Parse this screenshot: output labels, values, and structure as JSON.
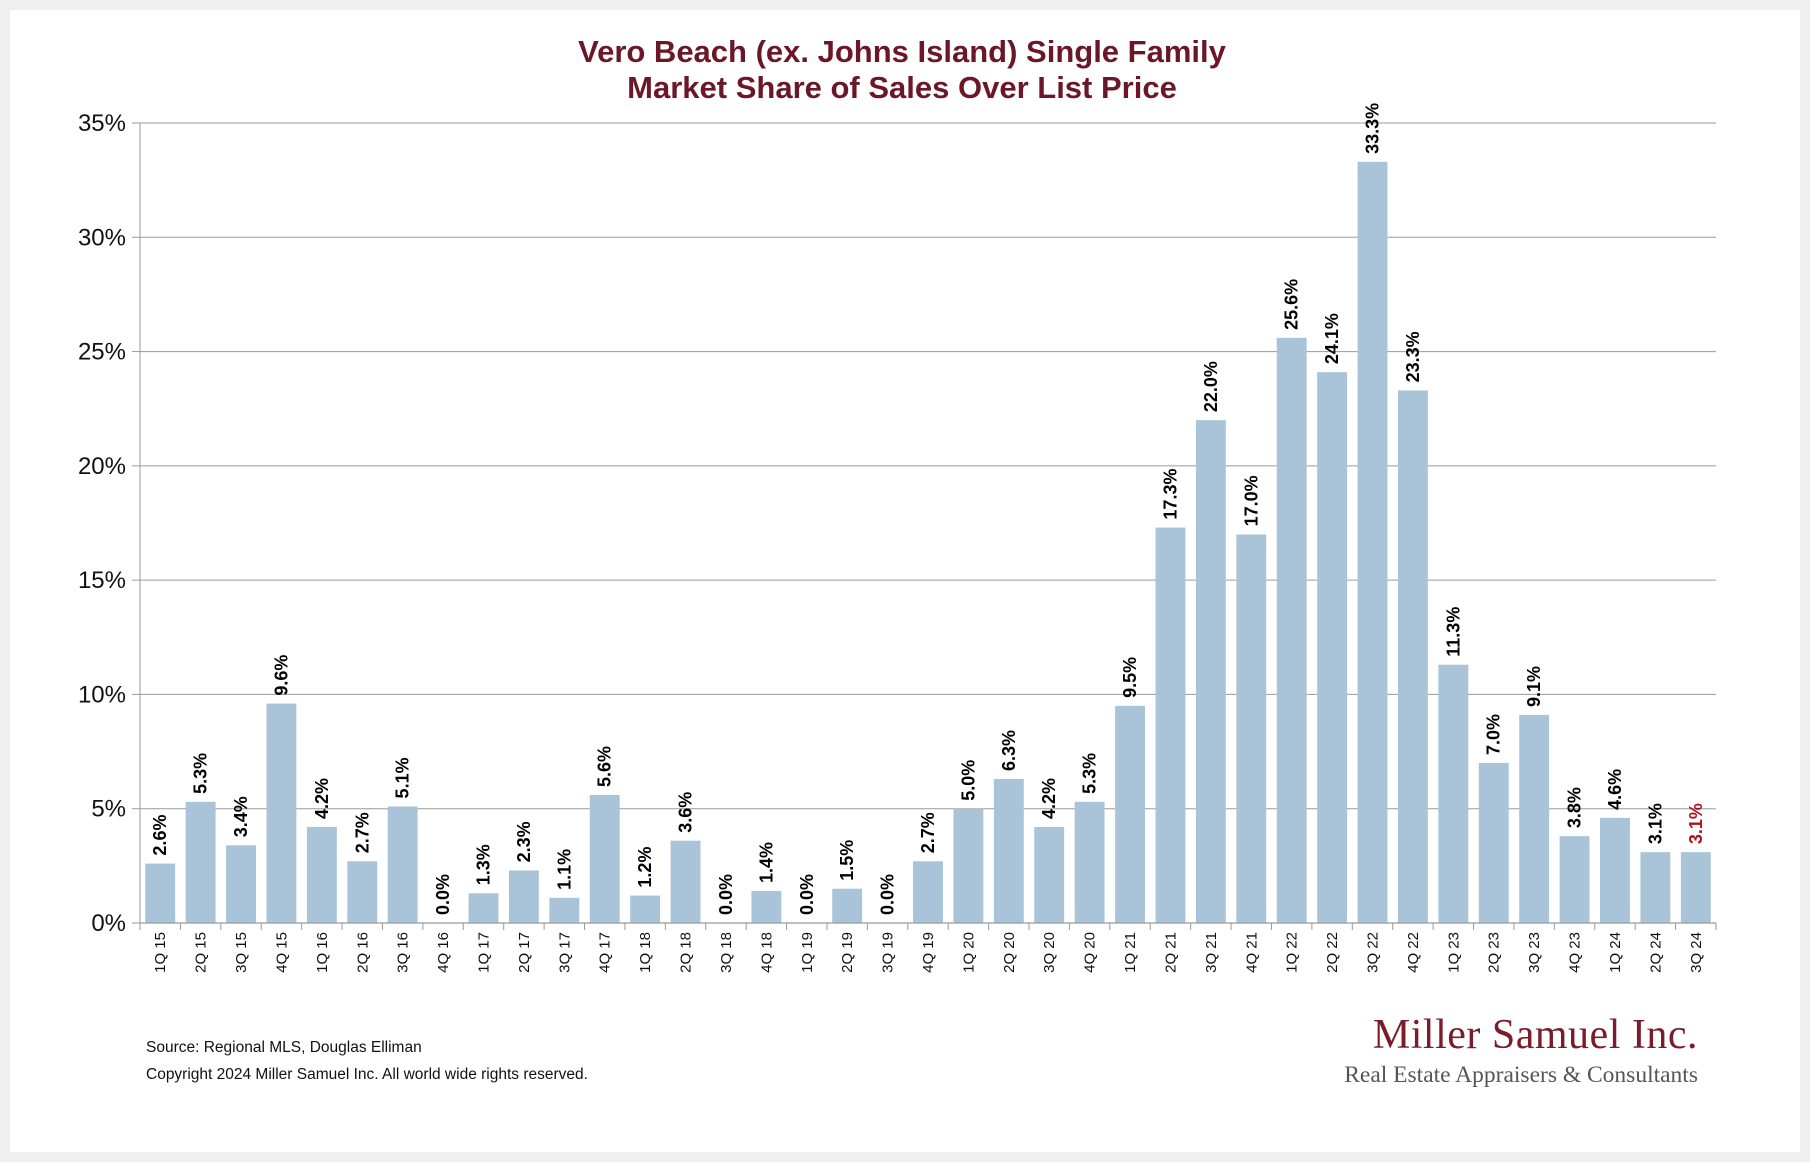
{
  "chart_data": {
    "type": "bar",
    "title": [
      "Vero Beach (ex. Johns Island) Single Family",
      "Market Share of Sales Over List Price"
    ],
    "xlabel": "",
    "ylabel": "",
    "ylim": [
      0,
      35
    ],
    "yticks": [
      0,
      5,
      10,
      15,
      20,
      25,
      30,
      35
    ],
    "ytick_labels": [
      "0%",
      "5%",
      "10%",
      "15%",
      "20%",
      "25%",
      "30%",
      "35%"
    ],
    "grid": true,
    "legend": "none",
    "categories": [
      "1Q 15",
      "2Q 15",
      "3Q 15",
      "4Q 15",
      "1Q 16",
      "2Q 16",
      "3Q 16",
      "4Q 16",
      "1Q 17",
      "2Q 17",
      "3Q 17",
      "4Q 17",
      "1Q 18",
      "2Q 18",
      "3Q 18",
      "4Q 18",
      "1Q 19",
      "2Q 19",
      "3Q 19",
      "4Q 19",
      "1Q 20",
      "2Q 20",
      "3Q 20",
      "4Q 20",
      "1Q 21",
      "2Q 21",
      "3Q 21",
      "4Q 21",
      "1Q 22",
      "2Q 22",
      "3Q 22",
      "4Q 22",
      "1Q 23",
      "2Q 23",
      "3Q 23",
      "4Q 23",
      "1Q 24",
      "2Q 24",
      "3Q 24"
    ],
    "values": [
      2.6,
      5.3,
      3.4,
      9.6,
      4.2,
      2.7,
      5.1,
      0.0,
      1.3,
      2.3,
      1.1,
      5.6,
      1.2,
      3.6,
      0.0,
      1.4,
      0.0,
      1.5,
      0.0,
      2.7,
      5.0,
      6.3,
      4.2,
      5.3,
      9.5,
      17.3,
      22.0,
      17.0,
      25.6,
      24.1,
      33.3,
      23.3,
      11.3,
      7.0,
      9.1,
      3.8,
      4.6,
      3.1,
      3.1
    ],
    "data_labels": [
      "2.6%",
      "5.3%",
      "3.4%",
      "9.6%",
      "4.2%",
      "2.7%",
      "5.1%",
      "0.0%",
      "1.3%",
      "2.3%",
      "1.1%",
      "5.6%",
      "1.2%",
      "3.6%",
      "0.0%",
      "1.4%",
      "0.0%",
      "1.5%",
      "0.0%",
      "2.7%",
      "5.0%",
      "6.3%",
      "4.2%",
      "5.3%",
      "9.5%",
      "17.3%",
      "22.0%",
      "17.0%",
      "25.6%",
      "24.1%",
      "33.3%",
      "23.3%",
      "11.3%",
      "7.0%",
      "9.1%",
      "3.8%",
      "4.6%",
      "3.1%",
      "3.1%"
    ],
    "highlight_index": 38
  },
  "colors": {
    "bar": "#a9c4d8",
    "title": "#6b1727",
    "label": "#000000",
    "label_highlight": "#b3101e",
    "grid": "#9a9a9a",
    "axis": "#9a9a9a",
    "logo": "#7a1c2a"
  },
  "footer": {
    "source": "Source: Regional MLS, Douglas Elliman",
    "copyright": "Copyright 2024 Miller Samuel Inc.  All world wide rights reserved."
  },
  "logo": {
    "name": "Miller Samuel Inc.",
    "tagline": "Real Estate Appraisers & Consultants"
  }
}
